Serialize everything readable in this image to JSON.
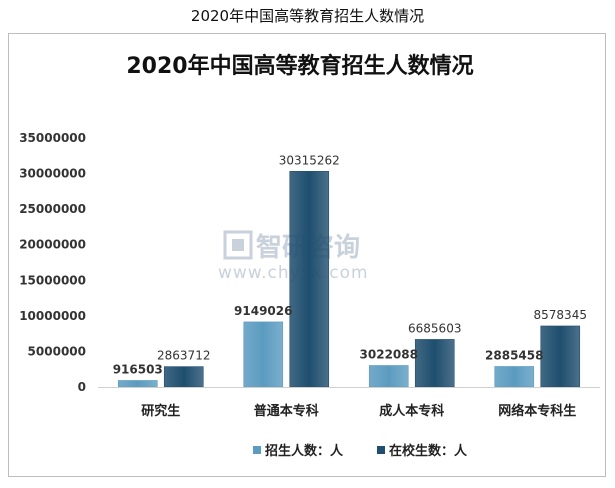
{
  "page_title": "2020年中国高等教育招生人数情况",
  "watermark": {
    "brand": "智研咨询",
    "url": "www.chyxx.com"
  },
  "colors": {
    "series1": "#5b9bc0",
    "series2": "#1f4e6e",
    "frame": "#bdbdbd"
  },
  "chart_data": {
    "type": "bar",
    "title": "2020年中国高等教育招生人数情况",
    "categories": [
      "研究生",
      "普通本专科",
      "成人本专科",
      "网络本专科生"
    ],
    "series": [
      {
        "name": "招生人数：人",
        "values": [
          916503,
          9149026,
          3022088,
          2885458
        ]
      },
      {
        "name": "在校生数：人",
        "values": [
          2863712,
          30315262,
          6685603,
          8578345
        ]
      }
    ],
    "yticks": [
      "0",
      "5000000",
      "10000000",
      "15000000",
      "20000000",
      "25000000",
      "30000000",
      "35000000"
    ],
    "ylim": [
      0,
      35000000
    ],
    "xlabel": "",
    "ylabel": "",
    "grid": false,
    "legend_position": "bottom"
  }
}
